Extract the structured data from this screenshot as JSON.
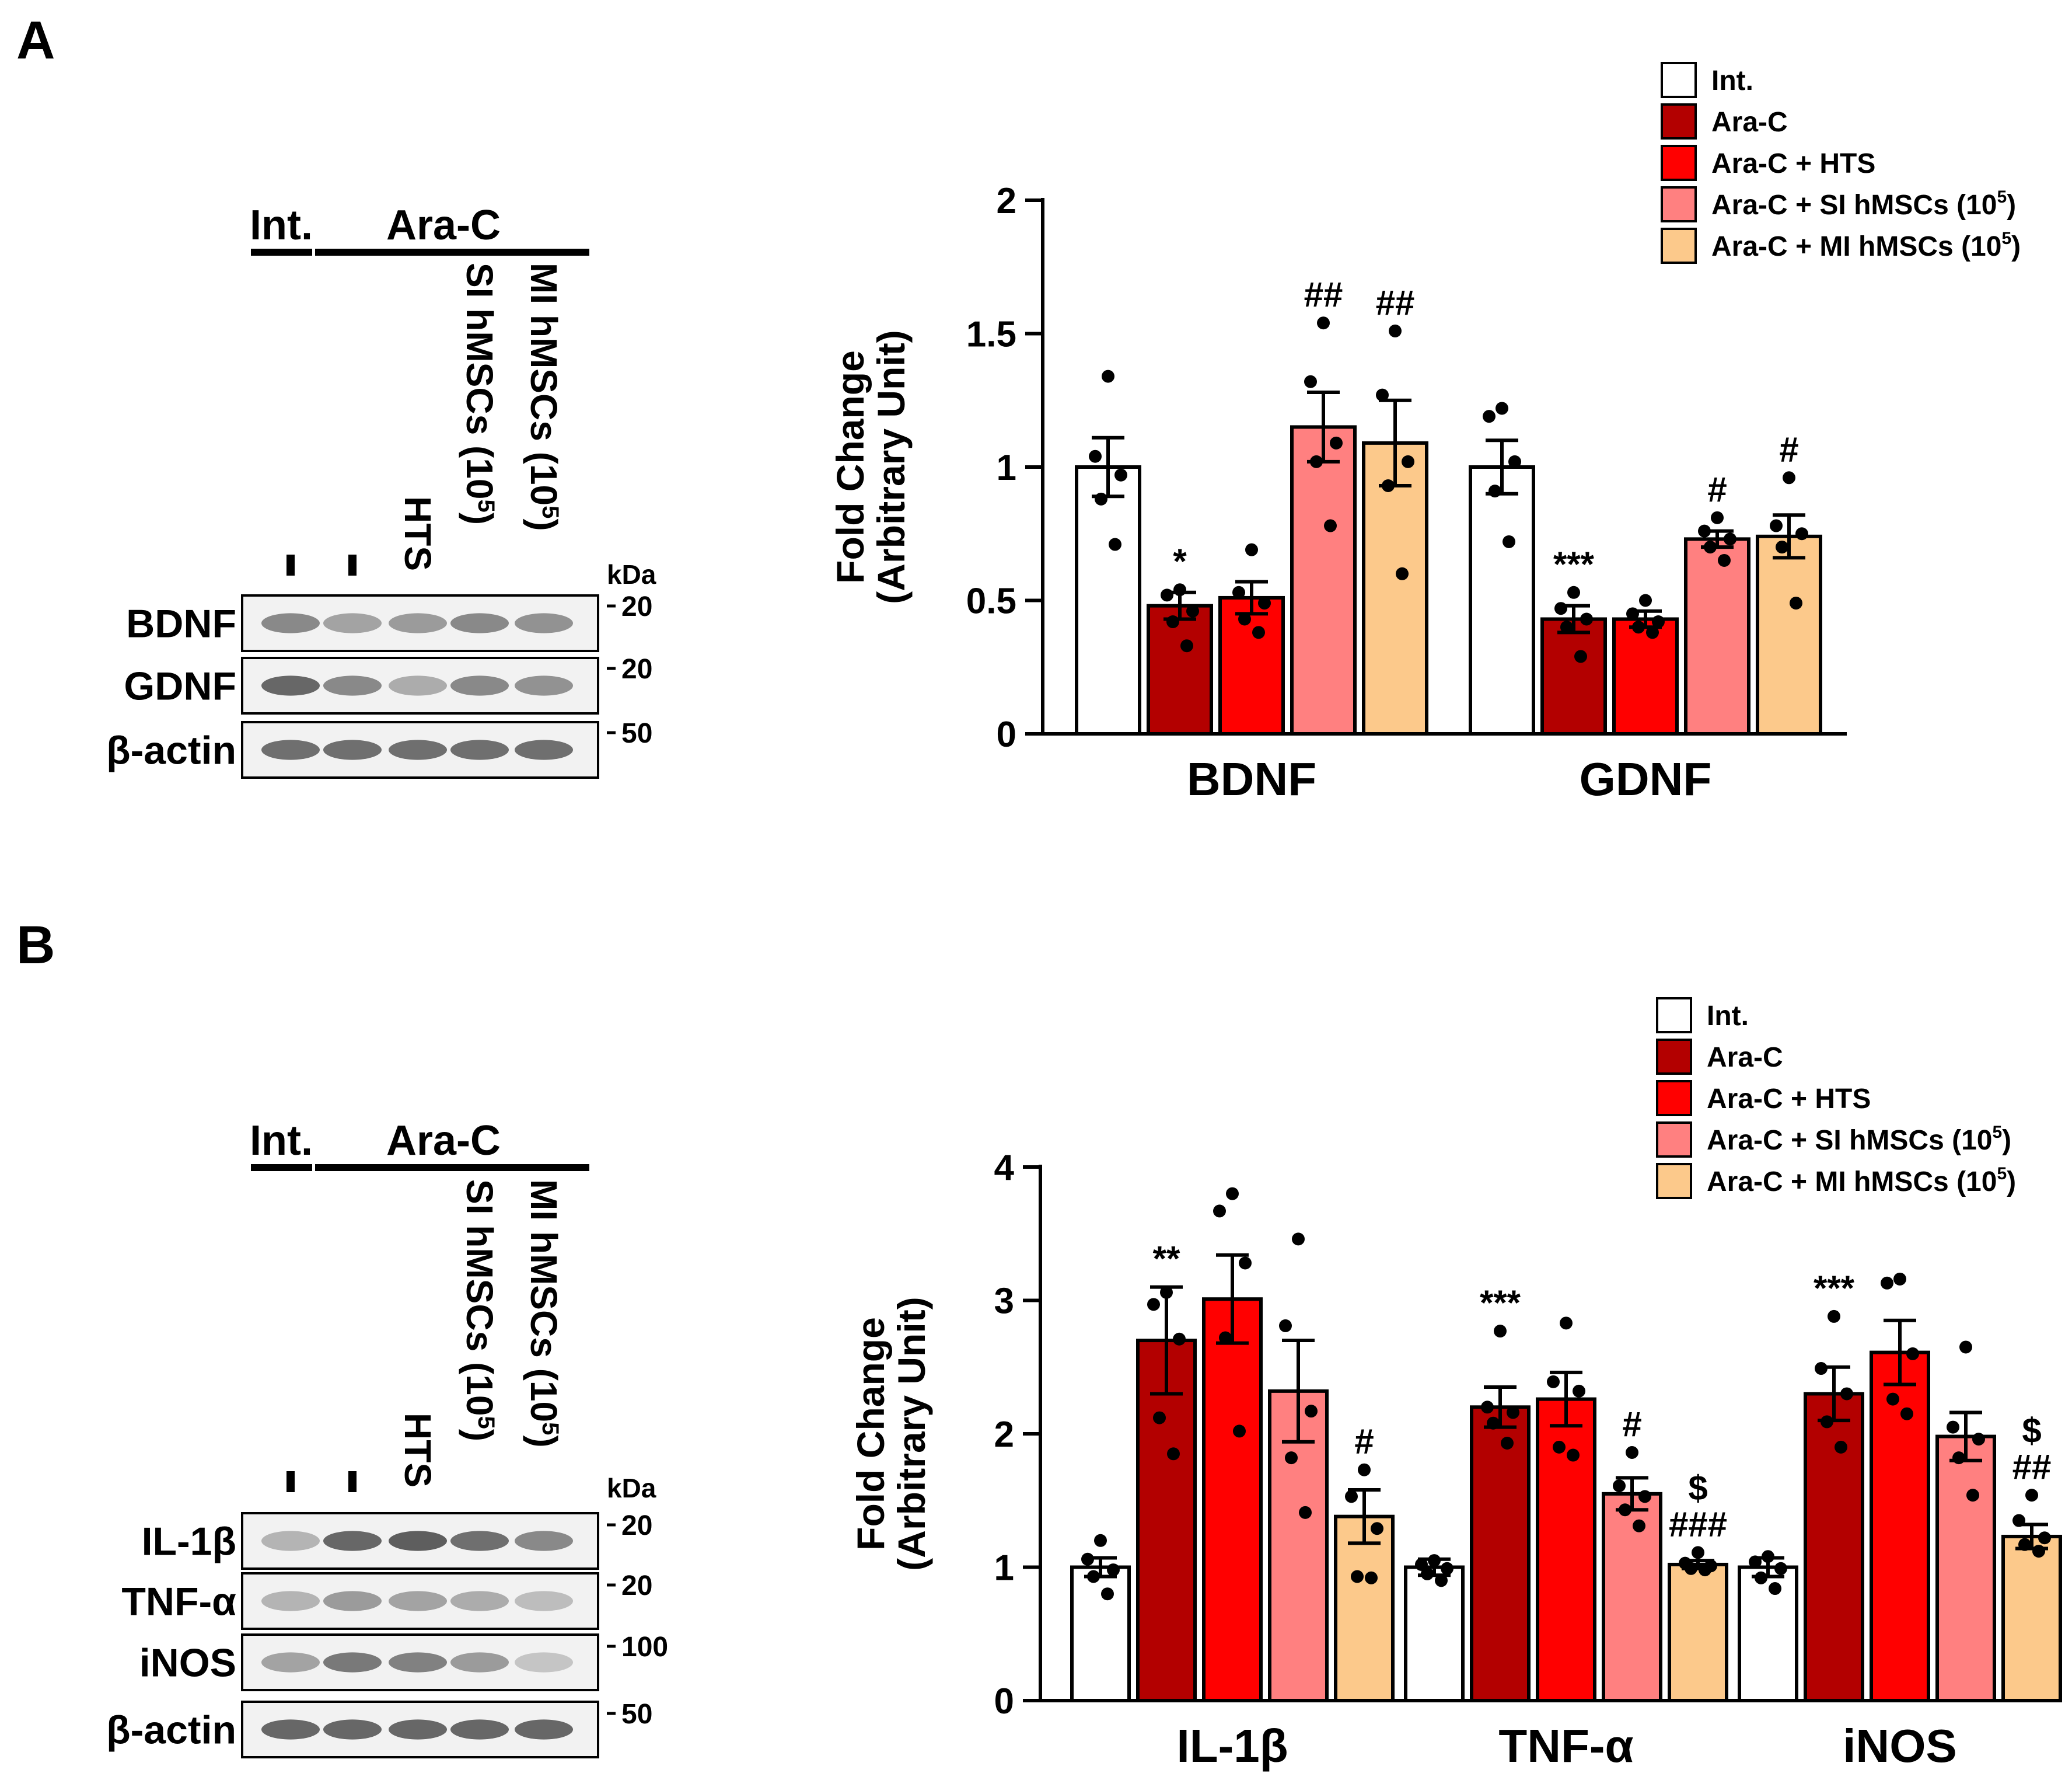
{
  "figure": {
    "panel_a_label": "A",
    "panel_b_label": "B"
  },
  "groups": [
    {
      "name": "Int.",
      "color": "#ffffff"
    },
    {
      "name": "Ara-C",
      "color": "#b30000"
    },
    {
      "name": "Ara-C + HTS",
      "color": "#ff0000"
    },
    {
      "name": "Ara-C + SI hMSCs (10",
      "sup": "5",
      "suffix": ")",
      "color": "#ff8080"
    },
    {
      "name": "Ara-C + MI hMSCs (10",
      "sup": "5",
      "suffix": ")",
      "color": "#fcc98b"
    }
  ],
  "blot_a": {
    "header_int": "Int.",
    "header_arac": "Ara-C",
    "lanes": [
      {
        "text": "",
        "dash": true
      },
      {
        "text": "",
        "dash": true
      },
      {
        "text": "HTS"
      },
      {
        "text": "SI hMSCs (10",
        "sup": "5",
        "suffix": ")"
      },
      {
        "text": "MI hMSCs (10",
        "sup": "5",
        "suffix": ")"
      }
    ],
    "kda_label": "kDa",
    "rows": [
      {
        "label": "BDNF",
        "marker": "20",
        "tone": [
          0.55,
          0.4,
          0.45,
          0.55,
          0.5
        ]
      },
      {
        "label": "GDNF",
        "marker": "20",
        "tone": [
          0.75,
          0.55,
          0.35,
          0.55,
          0.5
        ]
      },
      {
        "label": "β-actin",
        "marker": "50",
        "tone": [
          0.7,
          0.7,
          0.7,
          0.7,
          0.7
        ]
      }
    ]
  },
  "blot_b": {
    "header_int": "Int.",
    "header_arac": "Ara-C",
    "lanes": [
      {
        "text": "",
        "dash": true
      },
      {
        "text": "",
        "dash": true
      },
      {
        "text": "HTS"
      },
      {
        "text": "SI hMSCs (10",
        "sup": "5",
        "suffix": ")"
      },
      {
        "text": "MI hMSCs (10",
        "sup": "5",
        "suffix": ")"
      }
    ],
    "kda_label": "kDa",
    "rows": [
      {
        "label": "IL-1β",
        "marker": "20",
        "tone": [
          0.3,
          0.75,
          0.8,
          0.7,
          0.55
        ]
      },
      {
        "label": "TNF-α",
        "marker": "20",
        "tone": [
          0.3,
          0.45,
          0.4,
          0.35,
          0.25
        ]
      },
      {
        "label": "iNOS",
        "marker": "100",
        "tone": [
          0.4,
          0.65,
          0.6,
          0.45,
          0.2
        ]
      },
      {
        "label": "β-actin",
        "marker": "50",
        "tone": [
          0.75,
          0.75,
          0.75,
          0.75,
          0.75
        ]
      }
    ]
  },
  "chart_data": [
    {
      "type": "bar",
      "panel": "A",
      "title": "",
      "xlabel": "",
      "ylabel": "Fold Change",
      "ylabel2": "(Arbitrary Unit)",
      "ylim": [
        0,
        2
      ],
      "yticks": [
        0,
        0.5,
        1,
        1.5,
        2
      ],
      "ytick_labels": [
        "0",
        "0.5",
        "1",
        "1.5",
        "2"
      ],
      "legend_position": "top-right",
      "categories": [
        "BDNF",
        "GDNF"
      ],
      "series": [
        {
          "name": "Int.",
          "values": [
            1.0,
            1.0
          ],
          "errors": [
            0.11,
            0.1
          ],
          "points": [
            [
              1.34,
              1.04,
              0.97,
              0.88,
              0.71
            ],
            [
              1.22,
              1.19,
              1.02,
              0.91,
              0.72
            ]
          ],
          "annotations": [
            "",
            ""
          ]
        },
        {
          "name": "Ara-C",
          "values": [
            0.48,
            0.43
          ],
          "errors": [
            0.05,
            0.05
          ],
          "points": [
            [
              0.54,
              0.52,
              0.46,
              0.42,
              0.33
            ],
            [
              0.53,
              0.47,
              0.43,
              0.4,
              0.29
            ]
          ],
          "annotations": [
            "*",
            "***"
          ]
        },
        {
          "name": "Ara-C + HTS",
          "values": [
            0.51,
            0.43
          ],
          "errors": [
            0.06,
            0.03
          ],
          "points": [
            [
              0.69,
              0.53,
              0.49,
              0.43,
              0.38
            ],
            [
              0.5,
              0.45,
              0.42,
              0.4,
              0.38
            ]
          ],
          "annotations": [
            "",
            ""
          ]
        },
        {
          "name": "Ara-C + SI hMSCs (10^5)",
          "values": [
            1.15,
            0.73
          ],
          "errors": [
            0.13,
            0.03
          ],
          "points": [
            [
              1.54,
              1.32,
              1.09,
              1.02,
              0.78
            ],
            [
              0.81,
              0.76,
              0.73,
              0.7,
              0.65
            ]
          ],
          "annotations": [
            "##",
            "#"
          ]
        },
        {
          "name": "Ara-C + MI hMSCs (10^5)",
          "values": [
            1.09,
            0.74
          ],
          "errors": [
            0.16,
            0.08
          ],
          "points": [
            [
              1.51,
              1.27,
              1.02,
              0.93,
              0.6
            ],
            [
              0.96,
              0.78,
              0.75,
              0.7,
              0.49
            ]
          ],
          "annotations": [
            "##",
            "#"
          ]
        }
      ]
    },
    {
      "type": "bar",
      "panel": "B",
      "title": "",
      "xlabel": "",
      "ylabel": "Fold Change",
      "ylabel2": "(Arbitrary Unit)",
      "ylim": [
        0,
        4
      ],
      "yticks": [
        0,
        1,
        2,
        3,
        4
      ],
      "ytick_labels": [
        "0",
        "1",
        "2",
        "3",
        "4"
      ],
      "legend_position": "top-right",
      "categories": [
        "IL-1β",
        "TNF-α",
        "iNOS"
      ],
      "series": [
        {
          "name": "Int.",
          "values": [
            1.0,
            1.0,
            1.0
          ],
          "errors": [
            0.07,
            0.06,
            0.07
          ],
          "points": [
            [
              1.2,
              1.06,
              0.98,
              0.93,
              0.8
            ],
            [
              1.05,
              1.02,
              0.99,
              0.95,
              0.9
            ],
            [
              1.08,
              1.04,
              0.99,
              0.92,
              0.84
            ]
          ],
          "annotations": [
            "",
            "",
            ""
          ]
        },
        {
          "name": "Ara-C",
          "values": [
            2.7,
            2.2,
            2.3
          ],
          "errors": [
            0.4,
            0.15,
            0.2
          ],
          "points": [
            [
              3.06,
              2.97,
              2.71,
              2.12,
              1.85
            ],
            [
              2.77,
              2.2,
              2.16,
              2.08,
              1.93
            ],
            [
              2.88,
              2.49,
              2.3,
              2.09,
              1.9
            ]
          ],
          "annotations": [
            "**",
            "***",
            "***"
          ]
        },
        {
          "name": "Ara-C + HTS",
          "values": [
            3.01,
            2.26,
            2.61
          ],
          "errors": [
            0.33,
            0.2,
            0.24
          ],
          "points": [
            [
              3.8,
              3.67,
              3.28,
              2.72,
              2.02
            ],
            [
              2.83,
              2.39,
              2.32,
              1.9,
              1.84
            ],
            [
              3.16,
              3.13,
              2.6,
              2.26,
              2.15
            ]
          ],
          "annotations": [
            "",
            "",
            ""
          ]
        },
        {
          "name": "Ara-C + SI hMSCs (10^5)",
          "values": [
            2.32,
            1.55,
            1.98
          ],
          "errors": [
            0.38,
            0.12,
            0.18
          ],
          "points": [
            [
              3.46,
              2.81,
              2.17,
              1.82,
              1.41
            ],
            [
              1.86,
              1.61,
              1.53,
              1.43,
              1.31
            ],
            [
              2.65,
              2.05,
              1.96,
              1.82,
              1.54
            ]
          ],
          "annotations": [
            "",
            "#",
            ""
          ]
        },
        {
          "name": "Ara-C + MI hMSCs (10^5)",
          "values": [
            1.38,
            1.02,
            1.23
          ],
          "errors": [
            0.2,
            0.03,
            0.09
          ],
          "points": [
            [
              1.73,
              1.53,
              1.29,
              0.93,
              0.92
            ],
            [
              1.11,
              1.03,
              1.01,
              0.99,
              0.98
            ],
            [
              1.54,
              1.35,
              1.22,
              1.17,
              1.12
            ]
          ],
          "annotations": [
            "#",
            "$|###",
            "$|##"
          ]
        }
      ]
    }
  ]
}
